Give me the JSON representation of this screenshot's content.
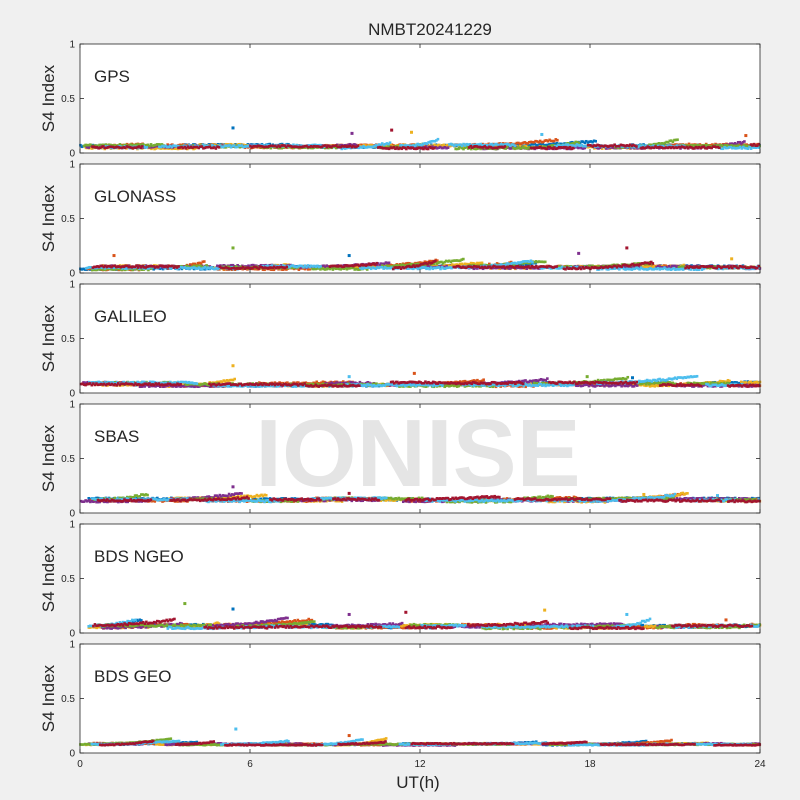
{
  "title": "NMBT20241229",
  "watermark": "IONISE",
  "series_colors": [
    "#0072BD",
    "#D95319",
    "#EDB120",
    "#7E2F8E",
    "#77AC30",
    "#4DBEEE",
    "#A2142F"
  ],
  "chart_data": [
    {
      "type": "scatter",
      "panel_label": "GPS",
      "ylabel": "S4 Index",
      "xlim": [
        0,
        24
      ],
      "ylim": [
        0,
        1
      ],
      "x_ticks": [
        0,
        6,
        12,
        18,
        24
      ],
      "y_ticks": [
        "0",
        "0.5",
        "1"
      ],
      "baseline": 0.06,
      "spread": 0.03,
      "outliers": [
        [
          5.4,
          0.23
        ],
        [
          9.6,
          0.18
        ],
        [
          11.0,
          0.21
        ],
        [
          11.7,
          0.19
        ],
        [
          16.3,
          0.17
        ],
        [
          23.5,
          0.16
        ]
      ]
    },
    {
      "type": "scatter",
      "panel_label": "GLONASS",
      "ylabel": "S4 Index",
      "xlim": [
        0,
        24
      ],
      "ylim": [
        0,
        1
      ],
      "x_ticks": [
        0,
        6,
        12,
        18,
        24
      ],
      "y_ticks": [
        "0",
        "0.5",
        "1"
      ],
      "baseline": 0.05,
      "spread": 0.03,
      "outliers": [
        [
          1.2,
          0.16
        ],
        [
          5.4,
          0.23
        ],
        [
          9.5,
          0.16
        ],
        [
          17.6,
          0.18
        ],
        [
          19.3,
          0.23
        ],
        [
          23.0,
          0.13
        ]
      ]
    },
    {
      "type": "scatter",
      "panel_label": "GALILEO",
      "ylabel": "S4 Index",
      "xlim": [
        0,
        24
      ],
      "ylim": [
        0,
        1
      ],
      "x_ticks": [
        0,
        6,
        12,
        18,
        24
      ],
      "y_ticks": [
        "0",
        "0.5",
        "1"
      ],
      "baseline": 0.08,
      "spread": 0.03,
      "outliers": [
        [
          5.4,
          0.25
        ],
        [
          9.5,
          0.15
        ],
        [
          11.8,
          0.18
        ],
        [
          17.9,
          0.15
        ],
        [
          19.5,
          0.14
        ]
      ]
    },
    {
      "type": "scatter",
      "panel_label": "SBAS",
      "ylabel": "S4 Index",
      "xlim": [
        0,
        24
      ],
      "ylim": [
        0,
        1
      ],
      "x_ticks": [
        0,
        6,
        12,
        18,
        24
      ],
      "y_ticks": [
        "0",
        "0.5",
        "1"
      ],
      "baseline": 0.12,
      "spread": 0.03,
      "outliers": [
        [
          5.4,
          0.24
        ],
        [
          9.5,
          0.18
        ],
        [
          19.9,
          0.17
        ],
        [
          22.5,
          0.16
        ]
      ]
    },
    {
      "type": "scatter",
      "panel_label": "BDS NGEO",
      "ylabel": "S4 Index",
      "xlim": [
        0,
        24
      ],
      "ylim": [
        0,
        1
      ],
      "x_ticks": [
        0,
        6,
        12,
        18,
        24
      ],
      "y_ticks": [
        "0",
        "0.5",
        "1"
      ],
      "baseline": 0.06,
      "spread": 0.03,
      "outliers": [
        [
          3.7,
          0.27
        ],
        [
          5.4,
          0.22
        ],
        [
          9.5,
          0.17
        ],
        [
          11.5,
          0.19
        ],
        [
          16.4,
          0.21
        ],
        [
          19.3,
          0.17
        ],
        [
          22.8,
          0.12
        ]
      ]
    },
    {
      "type": "scatter",
      "panel_label": "BDS GEO",
      "ylabel": "S4 Index",
      "xlim": [
        0,
        24
      ],
      "ylim": [
        0,
        1
      ],
      "x_ticks": [
        0,
        6,
        12,
        18,
        24
      ],
      "y_ticks": [
        "0",
        "0.5",
        "1"
      ],
      "baseline": 0.08,
      "spread": 0.015,
      "outliers": [
        [
          5.5,
          0.22
        ],
        [
          9.5,
          0.16
        ]
      ]
    }
  ],
  "xlabel": "UT(h)"
}
